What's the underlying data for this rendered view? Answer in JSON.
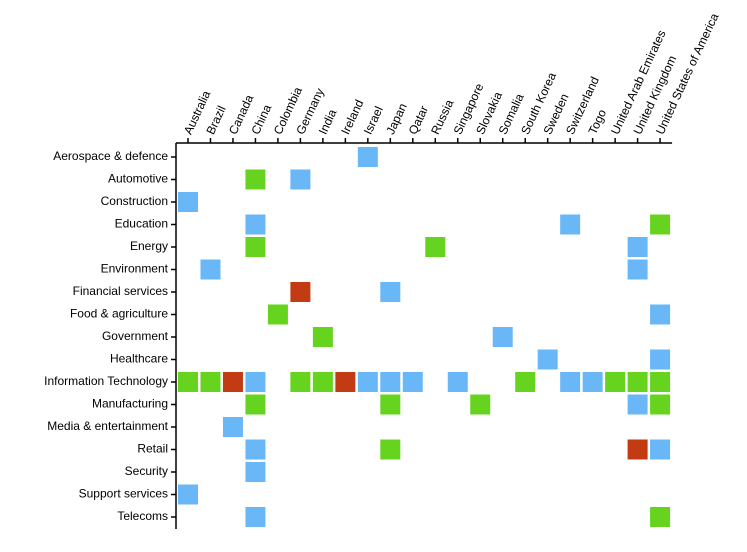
{
  "chart_data": {
    "type": "matrix",
    "columns": [
      "Australia",
      "Brazil",
      "Canada",
      "China",
      "Colombia",
      "Germany",
      "India",
      "Ireland",
      "Israel",
      "Japan",
      "Qatar",
      "Russia",
      "Singapore",
      "Slovakia",
      "Somalia",
      "South Korea",
      "Sweden",
      "Switzerland",
      "Togo",
      "United Arab Emirates",
      "United Kingdom",
      "United States of America"
    ],
    "rows": [
      "Aerospace & defence",
      "Automotive",
      "Construction",
      "Education",
      "Energy",
      "Environment",
      "Financial services",
      "Food & agriculture",
      "Government",
      "Healthcare",
      "Information Technology",
      "Manufacturing",
      "Media & entertainment",
      "Retail",
      "Security",
      "Support services",
      "Telecoms"
    ],
    "cells": [
      {
        "row": "Aerospace & defence",
        "column": "Israel",
        "color": "#6ab7f7"
      },
      {
        "row": "Automotive",
        "column": "China",
        "color": "#66d41e"
      },
      {
        "row": "Automotive",
        "column": "Germany",
        "color": "#6ab7f7"
      },
      {
        "row": "Construction",
        "column": "Australia",
        "color": "#6ab7f7"
      },
      {
        "row": "Education",
        "column": "China",
        "color": "#6ab7f7"
      },
      {
        "row": "Education",
        "column": "Switzerland",
        "color": "#6ab7f7"
      },
      {
        "row": "Education",
        "column": "United States of America",
        "color": "#66d41e"
      },
      {
        "row": "Energy",
        "column": "China",
        "color": "#66d41e"
      },
      {
        "row": "Energy",
        "column": "Russia",
        "color": "#66d41e"
      },
      {
        "row": "Energy",
        "column": "United Kingdom",
        "color": "#6ab7f7"
      },
      {
        "row": "Environment",
        "column": "Brazil",
        "color": "#6ab7f7"
      },
      {
        "row": "Environment",
        "column": "United Kingdom",
        "color": "#6ab7f7"
      },
      {
        "row": "Financial services",
        "column": "Germany",
        "color": "#c23b12"
      },
      {
        "row": "Financial services",
        "column": "Japan",
        "color": "#6ab7f7"
      },
      {
        "row": "Food & agriculture",
        "column": "Colombia",
        "color": "#66d41e"
      },
      {
        "row": "Food & agriculture",
        "column": "United States of America",
        "color": "#6ab7f7"
      },
      {
        "row": "Government",
        "column": "India",
        "color": "#66d41e"
      },
      {
        "row": "Government",
        "column": "Somalia",
        "color": "#6ab7f7"
      },
      {
        "row": "Healthcare",
        "column": "Sweden",
        "color": "#6ab7f7"
      },
      {
        "row": "Healthcare",
        "column": "United States of America",
        "color": "#6ab7f7"
      },
      {
        "row": "Information Technology",
        "column": "Australia",
        "color": "#66d41e"
      },
      {
        "row": "Information Technology",
        "column": "Brazil",
        "color": "#66d41e"
      },
      {
        "row": "Information Technology",
        "column": "Canada",
        "color": "#c23b12"
      },
      {
        "row": "Information Technology",
        "column": "China",
        "color": "#6ab7f7"
      },
      {
        "row": "Information Technology",
        "column": "Germany",
        "color": "#66d41e"
      },
      {
        "row": "Information Technology",
        "column": "India",
        "color": "#66d41e"
      },
      {
        "row": "Information Technology",
        "column": "Ireland",
        "color": "#c23b12"
      },
      {
        "row": "Information Technology",
        "column": "Israel",
        "color": "#6ab7f7"
      },
      {
        "row": "Information Technology",
        "column": "Japan",
        "color": "#6ab7f7"
      },
      {
        "row": "Information Technology",
        "column": "Qatar",
        "color": "#6ab7f7"
      },
      {
        "row": "Information Technology",
        "column": "Singapore",
        "color": "#6ab7f7"
      },
      {
        "row": "Information Technology",
        "column": "South Korea",
        "color": "#66d41e"
      },
      {
        "row": "Information Technology",
        "column": "Switzerland",
        "color": "#6ab7f7"
      },
      {
        "row": "Information Technology",
        "column": "Togo",
        "color": "#6ab7f7"
      },
      {
        "row": "Information Technology",
        "column": "United Arab Emirates",
        "color": "#66d41e"
      },
      {
        "row": "Information Technology",
        "column": "United Kingdom",
        "color": "#66d41e"
      },
      {
        "row": "Information Technology",
        "column": "United States of America",
        "color": "#66d41e"
      },
      {
        "row": "Manufacturing",
        "column": "China",
        "color": "#66d41e"
      },
      {
        "row": "Manufacturing",
        "column": "Japan",
        "color": "#66d41e"
      },
      {
        "row": "Manufacturing",
        "column": "Slovakia",
        "color": "#66d41e"
      },
      {
        "row": "Manufacturing",
        "column": "United Kingdom",
        "color": "#6ab7f7"
      },
      {
        "row": "Manufacturing",
        "column": "United States of America",
        "color": "#66d41e"
      },
      {
        "row": "Media & entertainment",
        "column": "Canada",
        "color": "#6ab7f7"
      },
      {
        "row": "Retail",
        "column": "China",
        "color": "#6ab7f7"
      },
      {
        "row": "Retail",
        "column": "Japan",
        "color": "#66d41e"
      },
      {
        "row": "Retail",
        "column": "United Kingdom",
        "color": "#c23b12"
      },
      {
        "row": "Retail",
        "column": "United States of America",
        "color": "#6ab7f7"
      },
      {
        "row": "Security",
        "column": "China",
        "color": "#6ab7f7"
      },
      {
        "row": "Support services",
        "column": "Australia",
        "color": "#6ab7f7"
      },
      {
        "row": "Telecoms",
        "column": "China",
        "color": "#6ab7f7"
      },
      {
        "row": "Telecoms",
        "column": "United States of America",
        "color": "#66d41e"
      }
    ]
  }
}
